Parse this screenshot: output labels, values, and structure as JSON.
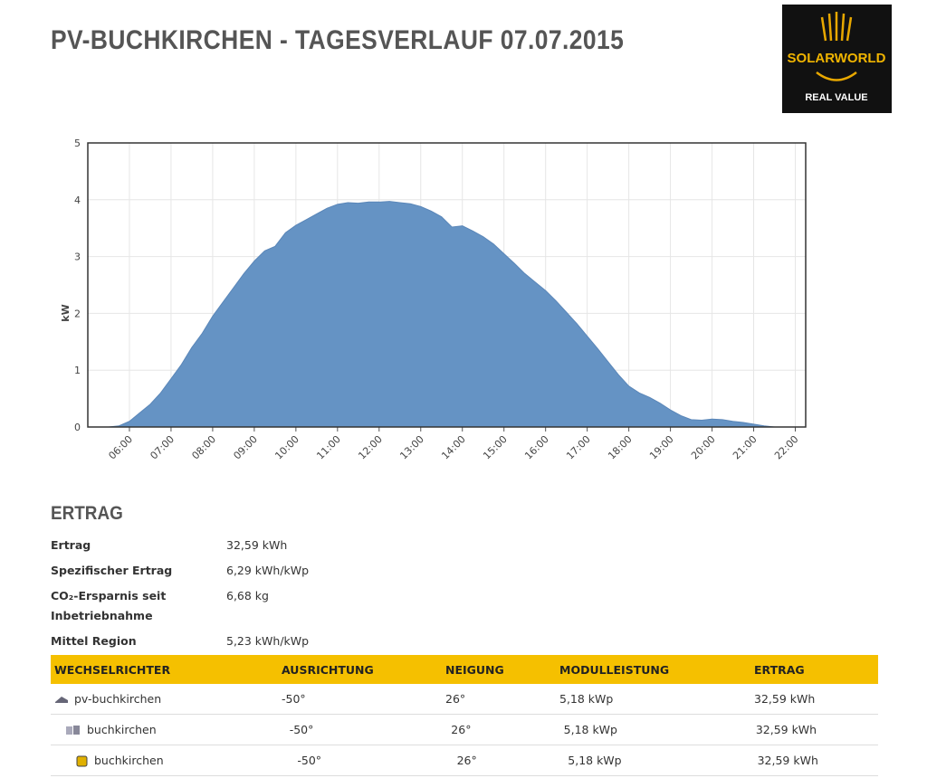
{
  "header": {
    "title": "PV-BUCHKIRCHEN - TAGESVERLAUF 07.07.2015",
    "logo": {
      "brand": "SOLARWORLD",
      "tagline": "REAL VALUE"
    }
  },
  "chart_data": {
    "type": "area",
    "ylabel": "kW",
    "color": "#6593c4",
    "grid": true,
    "x": [
      "05:30",
      "05:45",
      "06:00",
      "06:15",
      "06:30",
      "06:45",
      "07:00",
      "07:15",
      "07:30",
      "07:45",
      "08:00",
      "08:15",
      "08:30",
      "08:45",
      "09:00",
      "09:15",
      "09:30",
      "09:45",
      "10:00",
      "10:15",
      "10:30",
      "10:45",
      "11:00",
      "11:15",
      "11:30",
      "11:45",
      "12:00",
      "12:15",
      "12:30",
      "12:45",
      "13:00",
      "13:15",
      "13:30",
      "13:45",
      "14:00",
      "14:15",
      "14:30",
      "14:45",
      "15:00",
      "15:15",
      "15:30",
      "15:45",
      "16:00",
      "16:15",
      "16:30",
      "16:45",
      "17:00",
      "17:15",
      "17:30",
      "17:45",
      "18:00",
      "18:15",
      "18:30",
      "18:45",
      "19:00",
      "19:15",
      "19:30",
      "19:45",
      "20:00",
      "20:15",
      "20:30",
      "20:45",
      "21:00",
      "21:15",
      "21:30"
    ],
    "values": [
      0,
      0.02,
      0.1,
      0.25,
      0.4,
      0.6,
      0.85,
      1.1,
      1.4,
      1.65,
      1.95,
      2.2,
      2.45,
      2.7,
      2.92,
      3.1,
      3.18,
      3.42,
      3.55,
      3.65,
      3.75,
      3.85,
      3.92,
      3.95,
      3.94,
      3.96,
      3.96,
      3.97,
      3.95,
      3.93,
      3.88,
      3.8,
      3.7,
      3.52,
      3.54,
      3.45,
      3.35,
      3.22,
      3.05,
      2.88,
      2.7,
      2.55,
      2.4,
      2.22,
      2.02,
      1.82,
      1.6,
      1.38,
      1.15,
      0.92,
      0.72,
      0.6,
      0.52,
      0.42,
      0.3,
      0.2,
      0.13,
      0.12,
      0.14,
      0.13,
      0.1,
      0.08,
      0.05,
      0.02,
      0
    ],
    "xlim": [
      "05:00",
      "22:15"
    ],
    "xticks": [
      "06:00",
      "07:00",
      "08:00",
      "09:00",
      "10:00",
      "11:00",
      "12:00",
      "13:00",
      "14:00",
      "15:00",
      "16:00",
      "17:00",
      "18:00",
      "19:00",
      "20:00",
      "21:00",
      "22:00"
    ],
    "ylim": [
      0,
      5
    ],
    "yticks": [
      0,
      1,
      2,
      3,
      4,
      5
    ]
  },
  "summary": {
    "title": "ERTRAG",
    "rows": [
      [
        "Ertrag",
        "32,59 kWh"
      ],
      [
        "Spezifischer Ertrag",
        "6,29 kWh/kWp"
      ],
      [
        "CO₂-Ersparnis seit Inbetriebnahme",
        "6,68 kg"
      ],
      [
        "Mittel Region",
        "5,23 kWh/kWp"
      ]
    ]
  },
  "table": {
    "columns": [
      "WECHSELRICHTER",
      "AUSRICHTUNG",
      "NEIGUNG",
      "MODULLEISTUNG",
      "ERTRAG"
    ],
    "rows": [
      [
        "pv-buchkirchen",
        "-50°",
        "26°",
        "5,18 kWp",
        "32,59 kWh"
      ],
      [
        "buchkirchen",
        "-50°",
        "26°",
        "5,18 kWp",
        "32,59 kWh"
      ],
      [
        "buchkirchen",
        "-50°",
        "26°",
        "5,18 kWp",
        "32,59 kWh"
      ]
    ]
  }
}
